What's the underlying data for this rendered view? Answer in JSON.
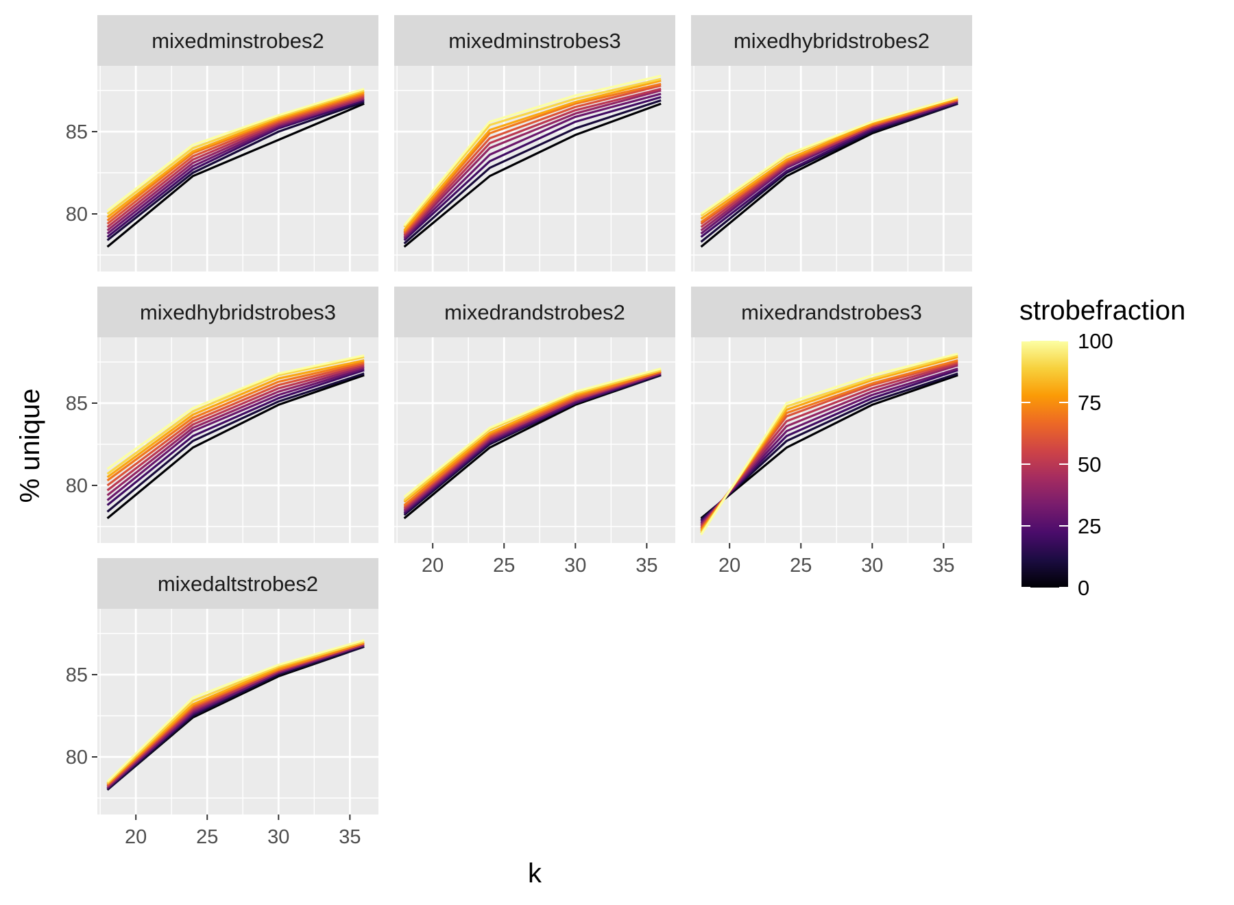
{
  "figure": {
    "xlabel": "k",
    "ylabel": "% unique",
    "legend_title": "strobefraction"
  },
  "colors": {
    "panel_bg": "#EBEBEB",
    "strip_bg": "#D9D9D9",
    "grid": "#FFFFFF",
    "text": "#1A1A1A",
    "tick_text": "#4D4D4D",
    "palette": [
      "#000004",
      "#1B0C41",
      "#4A0C6B",
      "#781C6D",
      "#A52C60",
      "#CF4446",
      "#ED6925",
      "#FB9B06",
      "#F7D13D",
      "#FCFFA4"
    ]
  },
  "chart_data": {
    "type": "line",
    "facet_by": "panel",
    "x_name": "k",
    "y_name": "% unique",
    "color_name": "strobefraction",
    "color_scale": "inferno",
    "color_range": [
      0,
      100
    ],
    "color_ticks": [
      0,
      25,
      50,
      75,
      100
    ],
    "x": [
      18,
      24,
      30,
      36
    ],
    "xlim": [
      17.3,
      37.0
    ],
    "ylim": [
      76.5,
      89.0
    ],
    "x_ticks": [
      20,
      25,
      30,
      35
    ],
    "y_ticks": [
      80,
      85
    ],
    "strobefractions": [
      0,
      10,
      20,
      30,
      40,
      50,
      60,
      70,
      80,
      90,
      100
    ],
    "panels": [
      {
        "name": "mixedminstrobes2",
        "series": [
          {
            "strobefraction": 0,
            "values": [
              78.0,
              82.3,
              84.5,
              86.7
            ]
          },
          {
            "strobefraction": 10,
            "values": [
              78.4,
              82.5,
              85.0,
              86.8
            ]
          },
          {
            "strobefraction": 20,
            "values": [
              78.6,
              82.7,
              85.2,
              86.9
            ]
          },
          {
            "strobefraction": 30,
            "values": [
              78.8,
              82.9,
              85.3,
              87.0
            ]
          },
          {
            "strobefraction": 40,
            "values": [
              79.0,
              83.1,
              85.4,
              87.0
            ]
          },
          {
            "strobefraction": 50,
            "values": [
              79.2,
              83.3,
              85.5,
              87.1
            ]
          },
          {
            "strobefraction": 60,
            "values": [
              79.4,
              83.5,
              85.6,
              87.2
            ]
          },
          {
            "strobefraction": 70,
            "values": [
              79.6,
              83.7,
              85.7,
              87.3
            ]
          },
          {
            "strobefraction": 80,
            "values": [
              79.8,
              83.8,
              85.8,
              87.4
            ]
          },
          {
            "strobefraction": 90,
            "values": [
              80.0,
              84.0,
              85.9,
              87.5
            ]
          },
          {
            "strobefraction": 100,
            "values": [
              80.2,
              84.2,
              86.0,
              87.6
            ]
          }
        ]
      },
      {
        "name": "mixedminstrobes3",
        "series": [
          {
            "strobefraction": 0,
            "values": [
              78.0,
              82.3,
              84.8,
              86.7
            ]
          },
          {
            "strobefraction": 10,
            "values": [
              78.2,
              82.8,
              85.2,
              86.9
            ]
          },
          {
            "strobefraction": 20,
            "values": [
              78.4,
              83.2,
              85.6,
              87.1
            ]
          },
          {
            "strobefraction": 30,
            "values": [
              78.5,
              83.6,
              85.9,
              87.3
            ]
          },
          {
            "strobefraction": 40,
            "values": [
              78.6,
              84.0,
              86.1,
              87.5
            ]
          },
          {
            "strobefraction": 50,
            "values": [
              78.7,
              84.3,
              86.3,
              87.6
            ]
          },
          {
            "strobefraction": 60,
            "values": [
              78.8,
              84.6,
              86.5,
              87.8
            ]
          },
          {
            "strobefraction": 70,
            "values": [
              78.9,
              84.9,
              86.7,
              87.9
            ]
          },
          {
            "strobefraction": 80,
            "values": [
              79.0,
              85.1,
              86.8,
              88.1
            ]
          },
          {
            "strobefraction": 90,
            "values": [
              79.2,
              85.4,
              87.0,
              88.2
            ]
          },
          {
            "strobefraction": 100,
            "values": [
              79.3,
              85.6,
              87.2,
              88.4
            ]
          }
        ]
      },
      {
        "name": "mixedhybridstrobes2",
        "series": [
          {
            "strobefraction": 0,
            "values": [
              78.0,
              82.3,
              84.9,
              86.7
            ]
          },
          {
            "strobefraction": 10,
            "values": [
              78.3,
              82.5,
              85.0,
              86.7
            ]
          },
          {
            "strobefraction": 20,
            "values": [
              78.6,
              82.6,
              85.1,
              86.8
            ]
          },
          {
            "strobefraction": 30,
            "values": [
              78.8,
              82.8,
              85.2,
              86.8
            ]
          },
          {
            "strobefraction": 40,
            "values": [
              79.0,
              82.9,
              85.3,
              86.9
            ]
          },
          {
            "strobefraction": 50,
            "values": [
              79.2,
              83.0,
              85.3,
              86.9
            ]
          },
          {
            "strobefraction": 60,
            "values": [
              79.4,
              83.1,
              85.4,
              86.9
            ]
          },
          {
            "strobefraction": 70,
            "values": [
              79.5,
              83.2,
              85.4,
              87.0
            ]
          },
          {
            "strobefraction": 80,
            "values": [
              79.7,
              83.3,
              85.5,
              87.0
            ]
          },
          {
            "strobefraction": 90,
            "values": [
              79.9,
              83.5,
              85.6,
              87.1
            ]
          },
          {
            "strobefraction": 100,
            "values": [
              80.0,
              83.6,
              85.6,
              87.1
            ]
          }
        ]
      },
      {
        "name": "mixedhybridstrobes3",
        "series": [
          {
            "strobefraction": 0,
            "values": [
              78.0,
              82.3,
              84.9,
              86.7
            ]
          },
          {
            "strobefraction": 10,
            "values": [
              78.4,
              82.7,
              85.1,
              86.8
            ]
          },
          {
            "strobefraction": 20,
            "values": [
              78.8,
              83.0,
              85.3,
              87.0
            ]
          },
          {
            "strobefraction": 30,
            "values": [
              79.1,
              83.3,
              85.5,
              87.1
            ]
          },
          {
            "strobefraction": 40,
            "values": [
              79.4,
              83.5,
              85.7,
              87.2
            ]
          },
          {
            "strobefraction": 50,
            "values": [
              79.7,
              83.7,
              85.9,
              87.3
            ]
          },
          {
            "strobefraction": 60,
            "values": [
              80.0,
              83.9,
              86.1,
              87.4
            ]
          },
          {
            "strobefraction": 70,
            "values": [
              80.3,
              84.1,
              86.3,
              87.5
            ]
          },
          {
            "strobefraction": 80,
            "values": [
              80.5,
              84.3,
              86.5,
              87.6
            ]
          },
          {
            "strobefraction": 90,
            "values": [
              80.7,
              84.5,
              86.7,
              87.8
            ]
          },
          {
            "strobefraction": 100,
            "values": [
              81.0,
              84.7,
              86.8,
              87.9
            ]
          }
        ]
      },
      {
        "name": "mixedrandstrobes2",
        "series": [
          {
            "strobefraction": 0,
            "values": [
              78.0,
              82.3,
              84.9,
              86.7
            ]
          },
          {
            "strobefraction": 10,
            "values": [
              78.2,
              82.5,
              85.0,
              86.7
            ]
          },
          {
            "strobefraction": 20,
            "values": [
              78.3,
              82.6,
              85.0,
              86.8
            ]
          },
          {
            "strobefraction": 30,
            "values": [
              78.4,
              82.7,
              85.1,
              86.8
            ]
          },
          {
            "strobefraction": 40,
            "values": [
              78.5,
              82.8,
              85.2,
              86.8
            ]
          },
          {
            "strobefraction": 50,
            "values": [
              78.6,
              82.9,
              85.2,
              86.9
            ]
          },
          {
            "strobefraction": 60,
            "values": [
              78.7,
              83.0,
              85.3,
              86.9
            ]
          },
          {
            "strobefraction": 70,
            "values": [
              78.8,
              83.1,
              85.4,
              86.9
            ]
          },
          {
            "strobefraction": 80,
            "values": [
              79.0,
              83.2,
              85.5,
              87.0
            ]
          },
          {
            "strobefraction": 90,
            "values": [
              79.1,
              83.4,
              85.6,
              87.0
            ]
          },
          {
            "strobefraction": 100,
            "values": [
              79.3,
              83.5,
              85.7,
              87.1
            ]
          }
        ]
      },
      {
        "name": "mixedrandstrobes3",
        "series": [
          {
            "strobefraction": 0,
            "values": [
              78.0,
              82.3,
              84.9,
              86.7
            ]
          },
          {
            "strobefraction": 10,
            "values": [
              77.9,
              82.7,
              85.1,
              86.8
            ]
          },
          {
            "strobefraction": 20,
            "values": [
              77.8,
              83.0,
              85.3,
              87.0
            ]
          },
          {
            "strobefraction": 30,
            "values": [
              77.7,
              83.3,
              85.5,
              87.1
            ]
          },
          {
            "strobefraction": 40,
            "values": [
              77.6,
              83.6,
              85.7,
              87.3
            ]
          },
          {
            "strobefraction": 50,
            "values": [
              77.5,
              83.9,
              85.9,
              87.4
            ]
          },
          {
            "strobefraction": 60,
            "values": [
              77.4,
              84.2,
              86.1,
              87.5
            ]
          },
          {
            "strobefraction": 70,
            "values": [
              77.3,
              84.4,
              86.2,
              87.6
            ]
          },
          {
            "strobefraction": 80,
            "values": [
              77.2,
              84.6,
              86.4,
              87.8
            ]
          },
          {
            "strobefraction": 90,
            "values": [
              77.1,
              84.8,
              86.5,
              87.9
            ]
          },
          {
            "strobefraction": 100,
            "values": [
              77.0,
              85.0,
              86.7,
              88.0
            ]
          }
        ]
      },
      {
        "name": "mixedaltstrobes2",
        "series": [
          {
            "strobefraction": 0,
            "values": [
              78.0,
              82.4,
              84.9,
              86.7
            ]
          },
          {
            "strobefraction": 10,
            "values": [
              78.0,
              82.5,
              85.0,
              86.7
            ]
          },
          {
            "strobefraction": 20,
            "values": [
              78.1,
              82.6,
              85.1,
              86.8
            ]
          },
          {
            "strobefraction": 30,
            "values": [
              78.1,
              82.7,
              85.1,
              86.8
            ]
          },
          {
            "strobefraction": 40,
            "values": [
              78.2,
              82.8,
              85.2,
              86.8
            ]
          },
          {
            "strobefraction": 50,
            "values": [
              78.2,
              82.9,
              85.2,
              86.9
            ]
          },
          {
            "strobefraction": 60,
            "values": [
              78.3,
              83.0,
              85.3,
              86.9
            ]
          },
          {
            "strobefraction": 70,
            "values": [
              78.3,
              83.1,
              85.3,
              86.9
            ]
          },
          {
            "strobefraction": 80,
            "values": [
              78.4,
              83.2,
              85.4,
              87.0
            ]
          },
          {
            "strobefraction": 90,
            "values": [
              78.4,
              83.4,
              85.5,
              87.0
            ]
          },
          {
            "strobefraction": 100,
            "values": [
              78.5,
              83.6,
              85.6,
              87.1
            ]
          }
        ]
      }
    ]
  }
}
